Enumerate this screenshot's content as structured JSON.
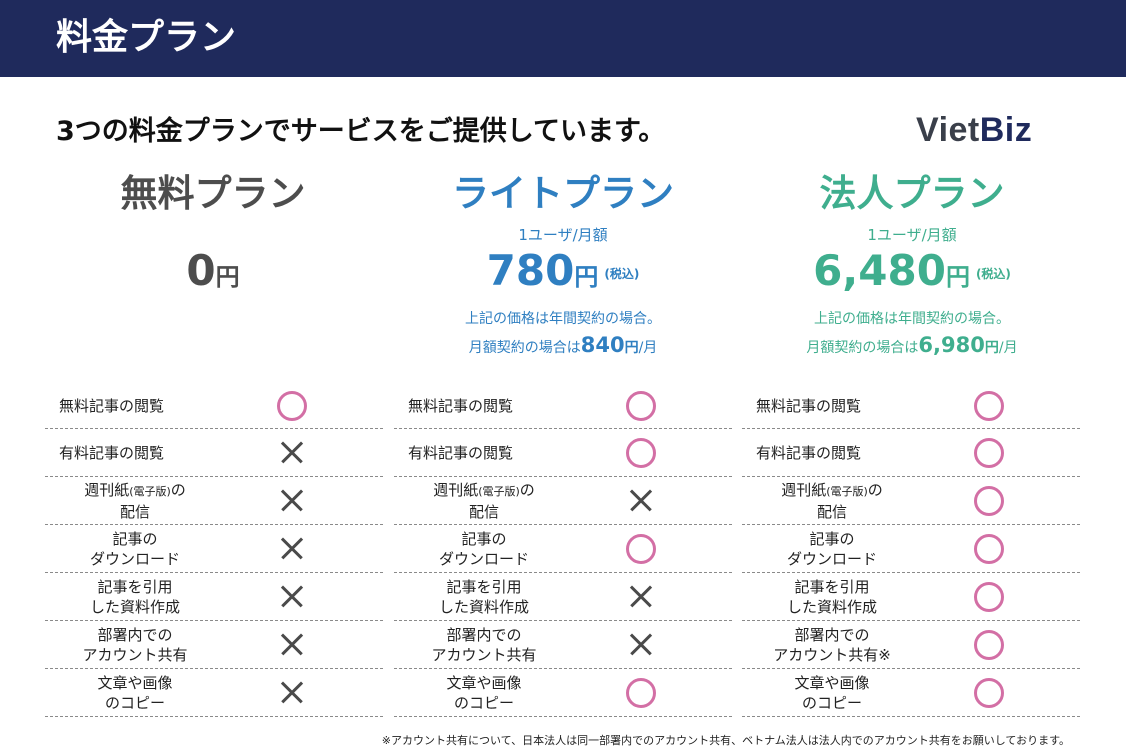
{
  "header": {
    "title": "料金プラン"
  },
  "subtitle": "3つの料金プランでサービスをご提供しています。",
  "logo": {
    "part1": "Viet",
    "part2": "Biz"
  },
  "plans": [
    {
      "name": "無料プラン",
      "color": "#4d4d4d",
      "unit": "",
      "price": "0",
      "yen": "円",
      "tax": "",
      "note1": "",
      "note2_prefix": "",
      "note2_price": "",
      "note2_yen": "",
      "note2_suffix": ""
    },
    {
      "name": "ライトプラン",
      "color": "#2f7fc1",
      "unit": "1ユーザ/月額",
      "price": "780",
      "yen": "円",
      "tax": "(税込)",
      "note1": "上記の価格は年間契約の場合。",
      "note2_prefix": "月額契約の場合は",
      "note2_price": "840",
      "note2_yen": "円",
      "note2_suffix": "/月"
    },
    {
      "name": "法人プラン",
      "color": "#3fae8e",
      "unit": "1ユーザ/月額",
      "price": "6,480",
      "yen": "円",
      "tax": "(税込)",
      "note1": "上記の価格は年間契約の場合。",
      "note2_prefix": "月額契約の場合は",
      "note2_price": "6,980",
      "note2_yen": "円",
      "note2_suffix": "/月"
    }
  ],
  "features": [
    {
      "line1": "無料記事の閲覧",
      "line1_small": "",
      "line1_tail": "",
      "line2": ""
    },
    {
      "line1": "有料記事の閲覧",
      "line1_small": "",
      "line1_tail": "",
      "line2": ""
    },
    {
      "line1": "週刊紙",
      "line1_small": "(電子版)",
      "line1_tail": "の",
      "line2": "配信"
    },
    {
      "line1": "記事の",
      "line1_small": "",
      "line1_tail": "",
      "line2": "ダウンロード"
    },
    {
      "line1": "記事を引用",
      "line1_small": "",
      "line1_tail": "",
      "line2": "した資料作成"
    },
    {
      "line1": "部署内での",
      "line1_small": "",
      "line1_tail": "",
      "line2": "アカウント共有"
    },
    {
      "line1": "文章や画像",
      "line1_small": "",
      "line1_tail": "",
      "line2": "のコピー"
    }
  ],
  "corporate_share_suffix": "※",
  "availability": [
    [
      "ok",
      "ng",
      "ng",
      "ng",
      "ng",
      "ng",
      "ng"
    ],
    [
      "ok",
      "ok",
      "ng",
      "ok",
      "ng",
      "ng",
      "ok"
    ],
    [
      "ok",
      "ok",
      "ok",
      "ok",
      "ok",
      "ok",
      "ok"
    ]
  ],
  "mark_colors": {
    "ok": "#d36fa5",
    "ng": "#4a4a4a"
  },
  "footnote": "※アカウント共有について、日本法人は同一部署内でのアカウント共有、ベトナム法人は法人内でのアカウント共有をお願いしております。"
}
